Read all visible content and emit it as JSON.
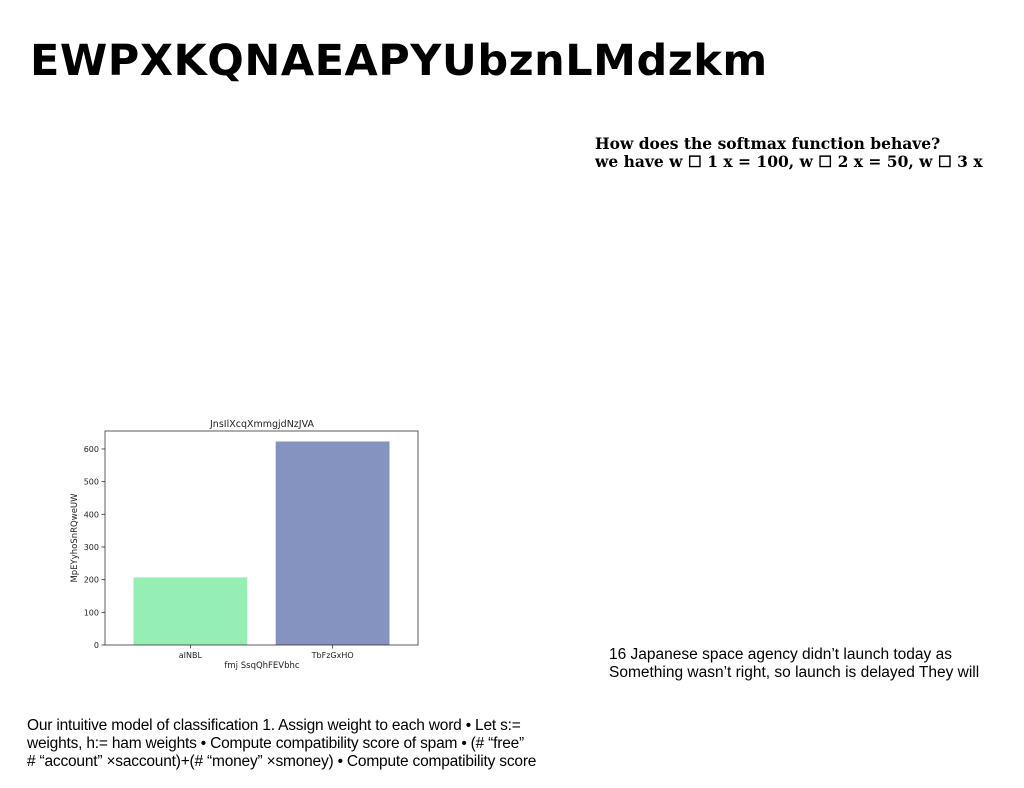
{
  "slide": {
    "title": "EWPXKQNAEAPYUbznLMdzkm"
  },
  "question": {
    "line1": "How does the softmax function behave?",
    "line2": "we have w ☐ 1 x = 100, w ☐ 2 x = 50, w ☐ 3 x"
  },
  "news": {
    "line1": "16 Japanese space agency didn’t launch today as",
    "line2": "Something wasn’t right, so launch is delayed They will"
  },
  "body": {
    "line1": "Our intuitive model of classification 1. Assign weight to each word • Let s:=",
    "line2": "weights, h:= ham weights • Compute compatibility score of spam • (# “free”",
    "line3": "# “account” ×saccount)+(# “money” ×smoney) • Compute compatibility score"
  },
  "chart_data": {
    "type": "bar",
    "title": "JnsIlXcqXmmgjdNzJVA",
    "xlabel": "fmj SsqQhFEVbhc",
    "ylabel": "MpEYyhoSnRQweUW",
    "categories": [
      "aINBL",
      "TbFzGxHO"
    ],
    "values": [
      207,
      623
    ],
    "colors": [
      "#95efb5",
      "#8493c0"
    ],
    "ylim": [
      0,
      655
    ],
    "yticks": [
      0,
      100,
      200,
      300,
      400,
      500,
      600
    ],
    "grid": false
  }
}
